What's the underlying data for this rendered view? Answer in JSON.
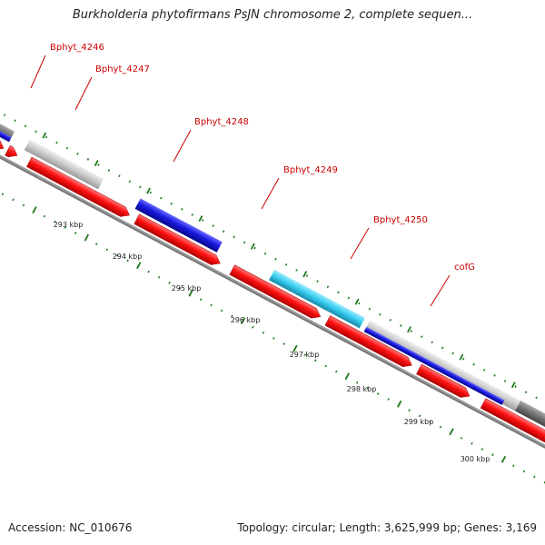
{
  "title": "Burkholderia phytofirmans PsJN chromosome 2, complete sequen...",
  "footer": {
    "accession": "Accession: NC_010676",
    "topology": "Topology: circular; Length: 3,625,999 bp; Genes: 3,169"
  },
  "colors": {
    "forward_cds": "#ff1111",
    "gene_blue": "#1a1ae0",
    "gene_gray": "#c8c8c8",
    "gene_cyan": "#33ccee",
    "gene_dark": "#707070",
    "backbone": "#8c8c8c",
    "tick_green": "#1f7a1f",
    "label_red": "#cc0000"
  },
  "gene_labels": [
    "Bphyt_4246",
    "Bphyt_4247",
    "Bphyt_4248",
    "Bphyt_4249",
    "Bphyt_4250",
    "cofG"
  ],
  "scale_labels": [
    "293 kbp",
    "294 kbp",
    "295 kbp",
    "296 kbp",
    "297 kbp",
    "298 kbp",
    "299 kbp",
    "300 kbp"
  ]
}
